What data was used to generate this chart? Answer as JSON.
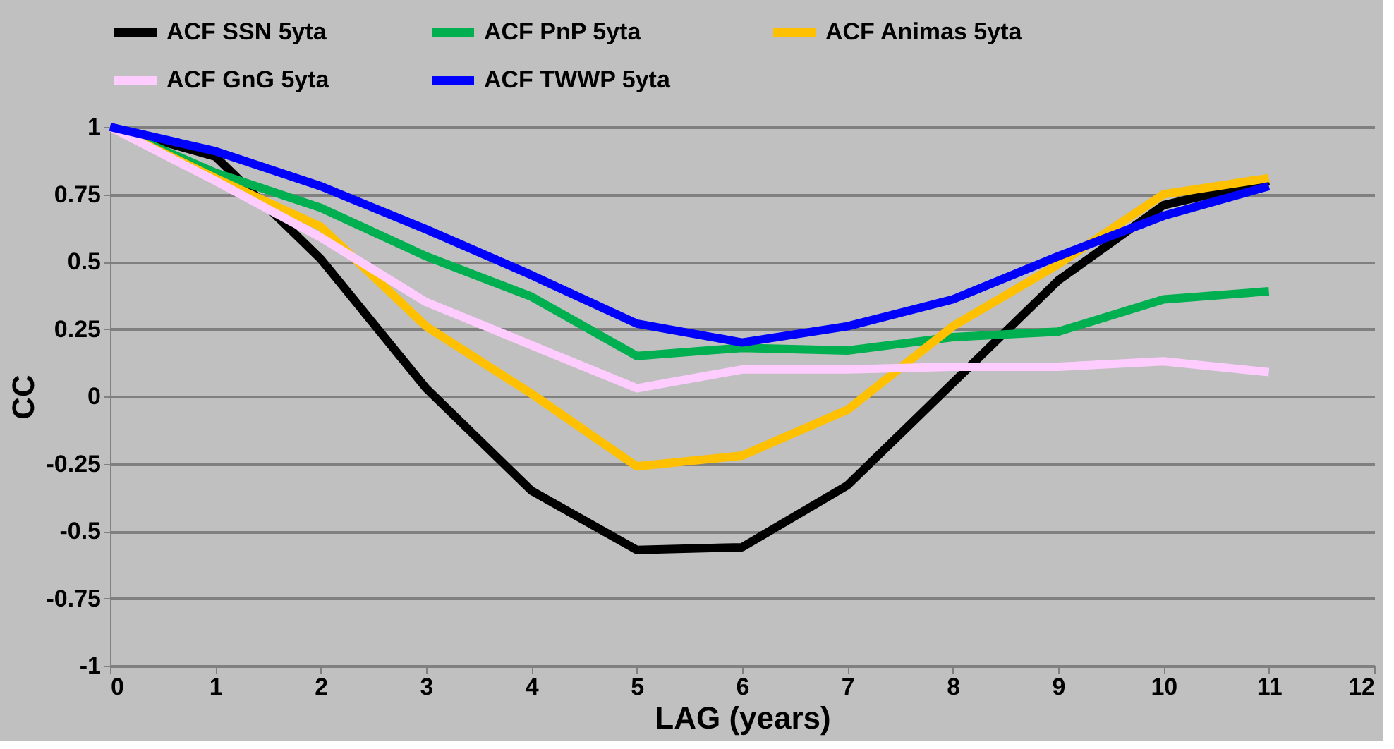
{
  "chart_data": {
    "type": "line",
    "xlabel": "LAG (years)",
    "ylabel": "CC",
    "x": [
      0,
      1,
      2,
      3,
      4,
      5,
      6,
      7,
      8,
      9,
      10,
      11
    ],
    "series": [
      {
        "name": "ACF SSN 5yta",
        "color": "#000000",
        "values": [
          1,
          0.89,
          0.51,
          0.03,
          -0.35,
          -0.57,
          -0.56,
          -0.33,
          0.05,
          0.43,
          0.71,
          0.8
        ]
      },
      {
        "name": "ACF PnP 5yta",
        "color": "#00b050",
        "values": [
          1,
          0.83,
          0.7,
          0.52,
          0.37,
          0.15,
          0.18,
          0.17,
          0.22,
          0.24,
          0.36,
          0.39
        ]
      },
      {
        "name": "ACF Animas 5yta",
        "color": "#ffc000",
        "values": [
          1,
          0.81,
          0.63,
          0.26,
          0.01,
          -0.26,
          -0.22,
          -0.05,
          0.26,
          0.49,
          0.75,
          0.81
        ]
      },
      {
        "name": "ACF GnG 5yta",
        "color": "#ffccff",
        "values": [
          1,
          0.8,
          0.59,
          0.35,
          0.19,
          0.03,
          0.1,
          0.1,
          0.11,
          0.11,
          0.13,
          0.09
        ]
      },
      {
        "name": "ACF TWWP 5yta",
        "color": "#0000ff",
        "values": [
          1,
          0.91,
          0.78,
          0.62,
          0.45,
          0.27,
          0.2,
          0.26,
          0.36,
          0.52,
          0.67,
          0.78
        ]
      }
    ],
    "xlim": [
      0,
      12
    ],
    "xticks": [
      0,
      1,
      2,
      3,
      4,
      5,
      6,
      7,
      8,
      9,
      10,
      11,
      12
    ],
    "ylim": [
      -1,
      1
    ],
    "yticks": [
      -1,
      -0.75,
      -0.5,
      -0.25,
      0,
      0.25,
      0.5,
      0.75,
      1
    ],
    "grid": "y",
    "legend": "top",
    "marker": "none",
    "line_style": "solid"
  }
}
